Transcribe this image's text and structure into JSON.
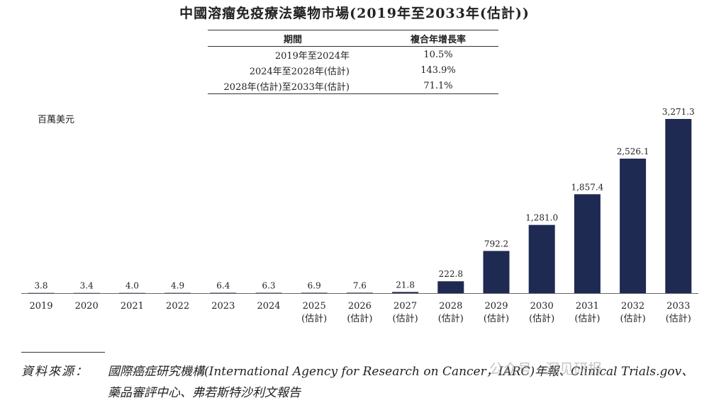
{
  "chart_data": {
    "type": "bar",
    "title": "中國溶瘤免疫療法藥物市場(2019年至2033年(估計))",
    "ylabel": "百萬美元",
    "xlabel": "",
    "categories": [
      "2019",
      "2020",
      "2021",
      "2022",
      "2023",
      "2024",
      "2025",
      "2026",
      "2027",
      "2028",
      "2029",
      "2030",
      "2031",
      "2032",
      "2033"
    ],
    "category_notes": [
      "",
      "",
      "",
      "",
      "",
      "",
      "(估計)",
      "(估計)",
      "(估計)",
      "(估計)",
      "(估計)",
      "(估計)",
      "(估計)",
      "(估計)",
      "(估計)"
    ],
    "values": [
      3.8,
      3.4,
      4.0,
      4.9,
      6.4,
      6.3,
      6.9,
      7.6,
      21.8,
      222.8,
      792.2,
      1281.0,
      1857.4,
      2526.1,
      3271.3
    ],
    "value_labels": [
      "3.8",
      "3.4",
      "4.0",
      "4.9",
      "6.4",
      "6.3",
      "6.9",
      "7.6",
      "21.8",
      "222.8",
      "792.2",
      "1,281.0",
      "1,857.4",
      "2,526.1",
      "3,271.3"
    ],
    "ylim": [
      0,
      3271.3
    ],
    "bar_color": "#1f2a52",
    "grid": false,
    "legend": "none"
  },
  "cagr_table": {
    "headers": [
      "期間",
      "複合年增長率"
    ],
    "rows": [
      [
        "2019年至2024年",
        "10.5%"
      ],
      [
        "2024年至2028年(估計)",
        "143.9%"
      ],
      [
        "2028年(估計)至2033年(估計)",
        "71.1%"
      ]
    ]
  },
  "source": {
    "label": "資料來源：",
    "line1": "國際癌症研究機構(International Agency for Research on Cancer，IARC)年報、Clinical Trials.gov、",
    "line2": "藥品審評中心、弗若斯特沙利文報告"
  },
  "watermark": "公众号 · 洞见研报"
}
